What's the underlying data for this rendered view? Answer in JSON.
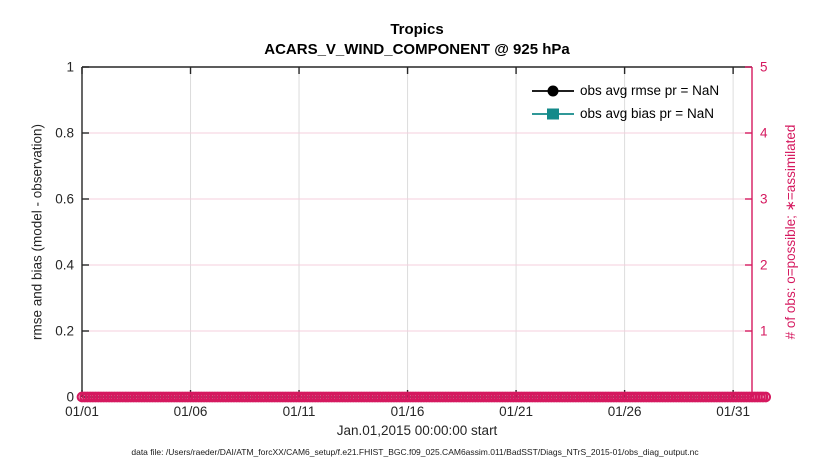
{
  "colors": {
    "black": "#000000",
    "axis_dark": "#262626",
    "pink": "#d5195f",
    "teal": "#138a8a",
    "grid_gray": "#dcdcdc",
    "grid_pink": "#f4cfdd"
  },
  "chart_data": {
    "type": "line",
    "title": "Tropics",
    "subtitle": "ACARS_V_WIND_COMPONENT @ 925 hPa",
    "xlabel": "Jan.01,2015 00:00:00 start",
    "ylabel_left": "rmse and bias (model - observation)",
    "ylabel_right": "# of obs: o=possible; ∗=assimilated",
    "x_ticks": [
      "01/01",
      "01/06",
      "01/11",
      "01/16",
      "01/21",
      "01/26",
      "01/31"
    ],
    "x_tick_days": [
      0,
      5,
      10,
      15,
      20,
      25,
      30
    ],
    "xlim_days": [
      0,
      30.87
    ],
    "ylim_left": [
      0,
      1
    ],
    "y_ticks_left": [
      "0",
      "0.2",
      "0.4",
      "0.6",
      "0.8",
      "1"
    ],
    "ylim_right": [
      0,
      5
    ],
    "y_ticks_right": [
      "0",
      "1",
      "2",
      "3",
      "4",
      "5"
    ],
    "grid": true,
    "legend_position": "upper-right-inside",
    "legend": {
      "entries": [
        {
          "label": "obs avg rmse pr = NaN",
          "marker": "filled-circle",
          "color": "#000000"
        },
        {
          "label": "obs avg bias pr = NaN",
          "marker": "filled-square",
          "color": "#138a8a"
        }
      ]
    },
    "series": [
      {
        "name": "obs avg rmse",
        "axis": "left",
        "color": "#000000",
        "marker": "filled-circle",
        "values": []
      },
      {
        "name": "obs avg bias",
        "axis": "left",
        "color": "#138a8a",
        "marker": "filled-square",
        "values": []
      },
      {
        "name": "possible obs count",
        "axis": "right",
        "color": "#d5195f",
        "marker": "open-circle",
        "y_right": 0,
        "x_start_day": 0,
        "x_end_day": 31.6,
        "x_step_days": 0.125
      }
    ]
  },
  "footer": {
    "text": "data file: /Users/raeder/DAI/ATM_forcXX/CAM6_setup/f.e21.FHIST_BGC.f09_025.CAM6assim.011/BadSST/Diags_NTrS_2015-01/obs_diag_output.nc"
  }
}
